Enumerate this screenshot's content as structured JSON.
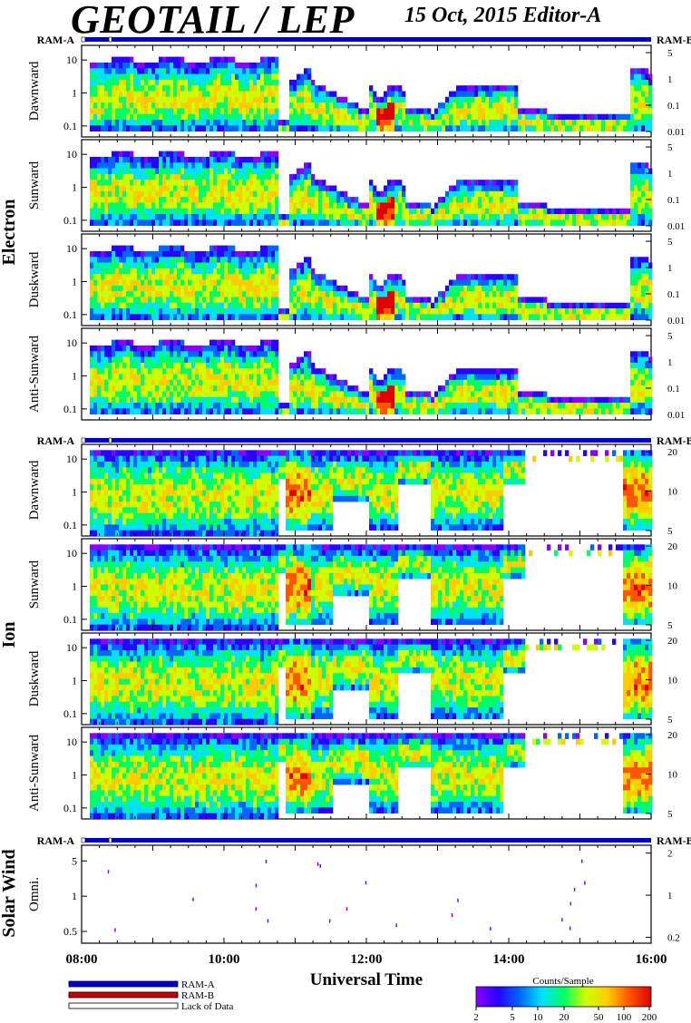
{
  "header": {
    "title": "GEOTAIL / LEP",
    "subtitle": "15 Oct, 2015   Editor-A"
  },
  "chart_data": {
    "type": "heatmap",
    "xlabel": "Universal Time",
    "x_ticks": [
      "08:00",
      "10:00",
      "12:00",
      "14:00",
      "16:00"
    ],
    "xlim": [
      "08:00",
      "16:00"
    ],
    "ram_labels": {
      "left": "RAM-A",
      "right": "RAM-B"
    },
    "lack_of_data_gaps": [
      [
        "08:00",
        "08:03"
      ],
      [
        "08:23",
        "08:25"
      ]
    ],
    "groups": [
      {
        "name": "Electron",
        "left_ticks": [
          "10",
          "1",
          "0.1"
        ],
        "right_ticks": [
          "5",
          "1",
          "0.1",
          "0.01"
        ],
        "panels": [
          "Dawnward",
          "Sunward",
          "Duskward",
          "Anti-Sunward"
        ]
      },
      {
        "name": "Ion",
        "left_ticks": [
          "10",
          "1",
          "0.1"
        ],
        "right_ticks": [
          "20",
          "10",
          "5"
        ],
        "panels": [
          "Dawnward",
          "Sunward",
          "Duskward",
          "Anti-Sunward"
        ]
      },
      {
        "name": "Solar Wind",
        "left_ticks": [
          "5",
          "1",
          "0.5"
        ],
        "right_ticks": [
          "2",
          "1",
          "0.2"
        ],
        "panels": [
          "Omni."
        ]
      }
    ],
    "legend": {
      "items": [
        "RAM-A",
        "RAM-B",
        "Lack of Data"
      ],
      "colors": [
        "#0000cc",
        "#cc0000",
        "#ffffff"
      ]
    },
    "colorbar": {
      "title": "Counts/Sample",
      "ticks": [
        "2",
        "5",
        "10",
        "20",
        "50",
        "100",
        "200"
      ],
      "colors": [
        "#8a00ff",
        "#2a00ff",
        "#0066ff",
        "#00e0ff",
        "#00ff66",
        "#ccff00",
        "#ffcc00",
        "#ff5500",
        "#e00000"
      ]
    }
  }
}
